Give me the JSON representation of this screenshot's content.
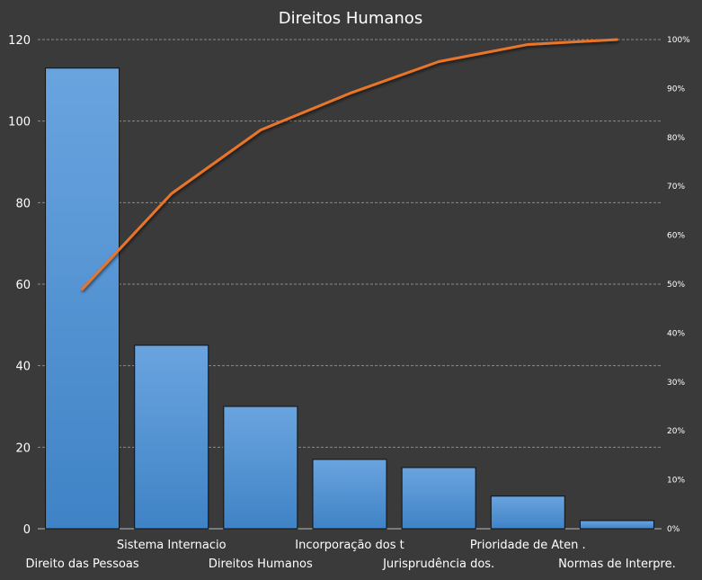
{
  "chart_data": {
    "type": "bar",
    "title": "Direitos Humanos",
    "categories": [
      "Direito das Pessoas",
      "Sistema Internacio",
      "Direitos Humanos",
      "Incorporação dos t",
      "Jurisprudência dos.",
      "Prioridade de Aten .",
      "Normas de Interpre."
    ],
    "series": [
      {
        "type": "bar",
        "axis": "left",
        "values": [
          113,
          45,
          30,
          17,
          15,
          8,
          2
        ]
      },
      {
        "type": "line",
        "axis": "right",
        "values": [
          49,
          68.5,
          81.5,
          89,
          95.5,
          99,
          100
        ]
      }
    ],
    "ylim": [
      0,
      120
    ],
    "yticks": [
      "0",
      "20",
      "40",
      "60",
      "80",
      "100",
      "120"
    ],
    "y2lim": [
      0,
      100
    ],
    "y2ticks": [
      "0%",
      "10%",
      "20%",
      "30%",
      "40%",
      "50%",
      "60%",
      "70%",
      "80%",
      "90%",
      "100%"
    ],
    "grid": true,
    "legend": "none",
    "colors": {
      "background": "#3a3a3a",
      "bar_top": "#6aa4df",
      "bar_bottom": "#3f83c6",
      "line": "#e8742a",
      "text": "#ffffff",
      "grid": "#8a8a8a"
    }
  }
}
